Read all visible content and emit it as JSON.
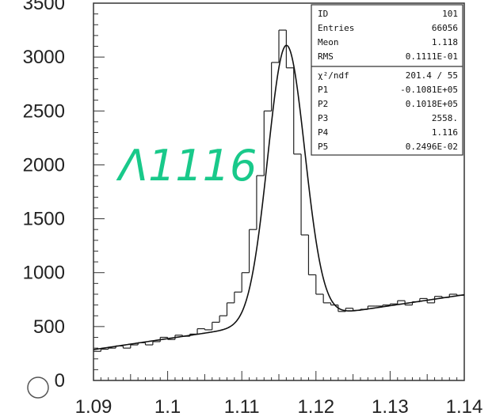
{
  "chart_data": {
    "type": "histogram",
    "xlim": [
      1.09,
      1.14
    ],
    "ylim": [
      0,
      3500
    ],
    "x_ticks": [
      "1.09",
      "1.1",
      "1.11",
      "1.12",
      "1.13",
      "1.14"
    ],
    "x_tick_values": [
      1.09,
      1.1,
      1.11,
      1.12,
      1.13,
      1.14
    ],
    "y_ticks": [
      "0",
      "500",
      "1000",
      "1500",
      "2000",
      "2500",
      "3000",
      "3500"
    ],
    "y_tick_values": [
      0,
      500,
      1000,
      1500,
      2000,
      2500,
      3000,
      3500
    ],
    "grid": false,
    "colors": {
      "histogram": "#222222",
      "fit": "#111111",
      "annotation": "#19c98a"
    },
    "annotation": "Λ1116",
    "stats_box": [
      {
        "label": "ID",
        "value": "101"
      },
      {
        "label": "Entries",
        "value": "66056"
      },
      {
        "label": "Meon",
        "value": "1.118"
      },
      {
        "label": "RMS",
        "value": "0.1111E-01"
      }
    ],
    "fit_box": [
      {
        "label": "χ²/ndf",
        "value": "201.4  /  55"
      },
      {
        "label": "P1",
        "value": "-0.1081E+05"
      },
      {
        "label": "P2",
        "value": "0.1018E+05"
      },
      {
        "label": "P3",
        "value": "2558."
      },
      {
        "label": "P4",
        "value": "1.116"
      },
      {
        "label": "P5",
        "value": "0.2496E-02"
      }
    ],
    "fit_function": "pol1 + gaus: P1 + P2*x + P3*exp(-0.5*((x-P4)/P5)^2)",
    "fit_params": {
      "P1": -10810,
      "P2": 10180,
      "P3": 2558,
      "P4": 1.116,
      "P5": 0.002496
    },
    "histogram": {
      "bin_width": 0.001,
      "bins": [
        {
          "x": 1.0905,
          "y": 270
        },
        {
          "x": 1.0915,
          "y": 290
        },
        {
          "x": 1.0925,
          "y": 300
        },
        {
          "x": 1.0935,
          "y": 320
        },
        {
          "x": 1.0945,
          "y": 300
        },
        {
          "x": 1.0955,
          "y": 330
        },
        {
          "x": 1.0965,
          "y": 350
        },
        {
          "x": 1.0975,
          "y": 330
        },
        {
          "x": 1.0985,
          "y": 360
        },
        {
          "x": 1.0995,
          "y": 400
        },
        {
          "x": 1.1005,
          "y": 380
        },
        {
          "x": 1.1015,
          "y": 420
        },
        {
          "x": 1.1025,
          "y": 410
        },
        {
          "x": 1.1035,
          "y": 430
        },
        {
          "x": 1.1045,
          "y": 480
        },
        {
          "x": 1.1055,
          "y": 470
        },
        {
          "x": 1.1065,
          "y": 540
        },
        {
          "x": 1.1075,
          "y": 600
        },
        {
          "x": 1.1085,
          "y": 720
        },
        {
          "x": 1.1095,
          "y": 820
        },
        {
          "x": 1.1105,
          "y": 1000
        },
        {
          "x": 1.1115,
          "y": 1400
        },
        {
          "x": 1.1125,
          "y": 1900
        },
        {
          "x": 1.1135,
          "y": 2500
        },
        {
          "x": 1.1145,
          "y": 2950
        },
        {
          "x": 1.1155,
          "y": 3250
        },
        {
          "x": 1.1165,
          "y": 2900
        },
        {
          "x": 1.1175,
          "y": 2100
        },
        {
          "x": 1.1185,
          "y": 1350
        },
        {
          "x": 1.1195,
          "y": 980
        },
        {
          "x": 1.1205,
          "y": 800
        },
        {
          "x": 1.1215,
          "y": 720
        },
        {
          "x": 1.1225,
          "y": 700
        },
        {
          "x": 1.1235,
          "y": 640
        },
        {
          "x": 1.1245,
          "y": 670
        },
        {
          "x": 1.1255,
          "y": 650
        },
        {
          "x": 1.1265,
          "y": 660
        },
        {
          "x": 1.1275,
          "y": 690
        },
        {
          "x": 1.1285,
          "y": 690
        },
        {
          "x": 1.1295,
          "y": 700
        },
        {
          "x": 1.1305,
          "y": 710
        },
        {
          "x": 1.1315,
          "y": 740
        },
        {
          "x": 1.1325,
          "y": 700
        },
        {
          "x": 1.1335,
          "y": 730
        },
        {
          "x": 1.1345,
          "y": 760
        },
        {
          "x": 1.1355,
          "y": 720
        },
        {
          "x": 1.1365,
          "y": 780
        },
        {
          "x": 1.1375,
          "y": 770
        },
        {
          "x": 1.1385,
          "y": 800
        },
        {
          "x": 1.1395,
          "y": 790
        }
      ]
    }
  }
}
